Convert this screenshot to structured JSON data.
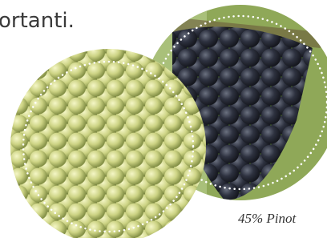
{
  "heading": "ortanti.",
  "caption": "45% Pinot"
}
